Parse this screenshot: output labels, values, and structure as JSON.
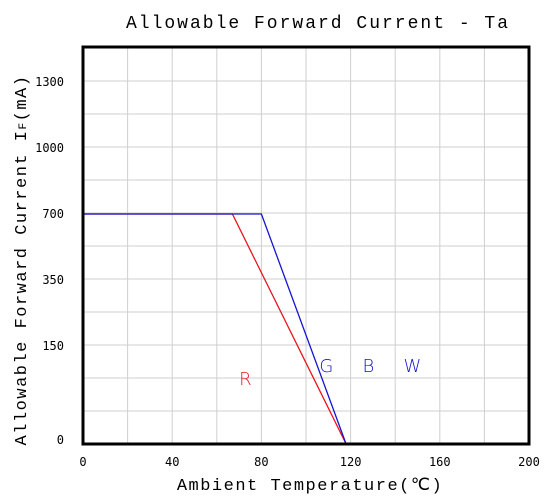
{
  "chart_data": {
    "type": "line",
    "title": "Allowable Forward Current - Ta",
    "xlabel": "Ambient Temperature(℃)",
    "ylabel": "Allowable Forward Current I",
    "ylabel_subscript": "F",
    "ylabel_unit": "(mA)",
    "xlim": [
      0,
      200
    ],
    "x_ticks": [
      0,
      40,
      80,
      120,
      160,
      200
    ],
    "x_tick_labels": [
      "0",
      "40",
      "80",
      "120",
      "160",
      "200"
    ],
    "y_ticks": [
      0,
      150,
      350,
      700,
      1000,
      1300
    ],
    "y_tick_labels": [
      "0",
      "150",
      "350",
      "700",
      "1000",
      "1300"
    ],
    "grid": true,
    "series": [
      {
        "label": "R",
        "color": "#e8141e",
        "x": [
          0,
          67,
          118
        ],
        "y": [
          700,
          700,
          0
        ]
      },
      {
        "label": "G B W",
        "color": "#1414d2",
        "x": [
          0,
          80,
          118
        ],
        "y": [
          700,
          700,
          0
        ]
      }
    ],
    "annotations": [
      {
        "text": "R",
        "color": "#e8141e",
        "x": 70,
        "y": 90
      },
      {
        "text": "G B W",
        "color": "#1414d2",
        "x": 106,
        "y": 110
      }
    ]
  }
}
